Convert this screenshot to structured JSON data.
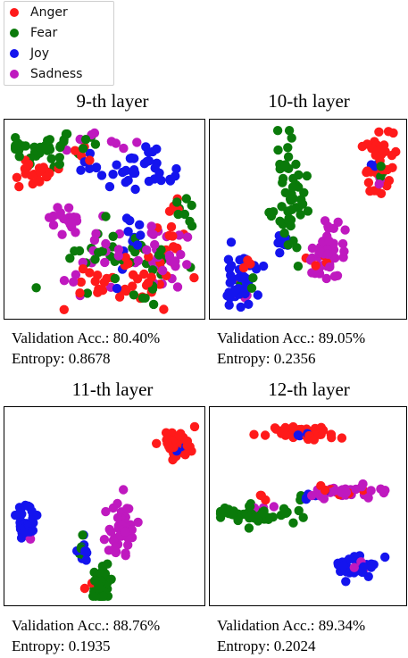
{
  "legend": {
    "items": [
      {
        "label": "Anger",
        "color": "#ff1a1a"
      },
      {
        "label": "Fear",
        "color": "#0a7a0a"
      },
      {
        "label": "Joy",
        "color": "#1414ee"
      },
      {
        "label": "Sadness",
        "color": "#bf19bf"
      }
    ]
  },
  "panels": [
    {
      "title": "9-th layer",
      "accuracy": "Validation Acc.: 80.40%",
      "entropy": "Entropy: 0.8678"
    },
    {
      "title": "10-th layer",
      "accuracy": "Validation Acc.: 89.05%",
      "entropy": "Entropy: 0.2356"
    },
    {
      "title": "11-th layer",
      "accuracy": "Validation Acc.: 88.76%",
      "entropy": "Entropy: 0.1935"
    },
    {
      "title": "12-th layer",
      "accuracy": "Validation Acc.: 89.34%",
      "entropy": "Entropy: 0.2024"
    }
  ],
  "chart_data": [
    {
      "type": "scatter",
      "title": "9-th layer",
      "grid": false,
      "series": [
        {
          "name": "Anger",
          "color": "#ff1a1a",
          "clusters": [
            {
              "cx": 0.12,
              "cy": 0.75,
              "sx": 0.07,
              "sy": 0.04,
              "n": 22
            },
            {
              "cx": 0.6,
              "cy": 0.18,
              "sx": 0.16,
              "sy": 0.07,
              "n": 40
            },
            {
              "cx": 0.86,
              "cy": 0.45,
              "sx": 0.06,
              "sy": 0.12,
              "n": 14
            },
            {
              "cx": 0.4,
              "cy": 0.9,
              "sx": 0.03,
              "sy": 0.03,
              "n": 4
            }
          ]
        },
        {
          "name": "Fear",
          "color": "#0a7a0a",
          "clusters": [
            {
              "cx": 0.22,
              "cy": 0.88,
              "sx": 0.13,
              "sy": 0.04,
              "n": 40
            },
            {
              "cx": 0.6,
              "cy": 0.3,
              "sx": 0.18,
              "sy": 0.08,
              "n": 38
            },
            {
              "cx": 0.88,
              "cy": 0.58,
              "sx": 0.05,
              "sy": 0.06,
              "n": 8
            }
          ]
        },
        {
          "name": "Joy",
          "color": "#1414ee",
          "clusters": [
            {
              "cx": 0.68,
              "cy": 0.74,
              "sx": 0.09,
              "sy": 0.06,
              "n": 32
            },
            {
              "cx": 0.64,
              "cy": 0.42,
              "sx": 0.04,
              "sy": 0.1,
              "n": 12
            },
            {
              "cx": 0.4,
              "cy": 0.78,
              "sx": 0.05,
              "sy": 0.03,
              "n": 6
            }
          ]
        },
        {
          "name": "Sadness",
          "color": "#bf19bf",
          "clusters": [
            {
              "cx": 0.3,
              "cy": 0.5,
              "sx": 0.07,
              "sy": 0.03,
              "n": 18
            },
            {
              "cx": 0.62,
              "cy": 0.3,
              "sx": 0.2,
              "sy": 0.1,
              "n": 42
            },
            {
              "cx": 0.45,
              "cy": 0.93,
              "sx": 0.1,
              "sy": 0.03,
              "n": 8
            },
            {
              "cx": 0.86,
              "cy": 0.25,
              "sx": 0.04,
              "sy": 0.04,
              "n": 5
            }
          ]
        }
      ]
    },
    {
      "type": "scatter",
      "title": "10-th layer",
      "grid": false,
      "series": [
        {
          "name": "Anger",
          "color": "#ff1a1a",
          "clusters": [
            {
              "cx": 0.88,
              "cy": 0.82,
              "sx": 0.04,
              "sy": 0.09,
              "n": 40
            },
            {
              "cx": 0.15,
              "cy": 0.22,
              "sx": 0.03,
              "sy": 0.05,
              "n": 5
            },
            {
              "cx": 0.58,
              "cy": 0.3,
              "sx": 0.04,
              "sy": 0.05,
              "n": 5
            }
          ]
        },
        {
          "name": "Fear",
          "color": "#0a7a0a",
          "clusters": [
            {
              "cx": 0.4,
              "cy": 0.62,
              "sx": 0.04,
              "sy": 0.16,
              "n": 55
            },
            {
              "cx": 0.9,
              "cy": 0.78,
              "sx": 0.02,
              "sy": 0.03,
              "n": 3
            },
            {
              "cx": 0.15,
              "cy": 0.18,
              "sx": 0.02,
              "sy": 0.03,
              "n": 3
            }
          ]
        },
        {
          "name": "Joy",
          "color": "#1414ee",
          "clusters": [
            {
              "cx": 0.13,
              "cy": 0.16,
              "sx": 0.05,
              "sy": 0.07,
              "n": 40
            },
            {
              "cx": 0.35,
              "cy": 0.38,
              "sx": 0.03,
              "sy": 0.04,
              "n": 8
            },
            {
              "cx": 0.88,
              "cy": 0.78,
              "sx": 0.02,
              "sy": 0.03,
              "n": 3
            }
          ]
        },
        {
          "name": "Sadness",
          "color": "#bf19bf",
          "clusters": [
            {
              "cx": 0.6,
              "cy": 0.33,
              "sx": 0.05,
              "sy": 0.08,
              "n": 45
            },
            {
              "cx": 0.14,
              "cy": 0.1,
              "sx": 0.02,
              "sy": 0.02,
              "n": 3
            },
            {
              "cx": 0.88,
              "cy": 0.72,
              "sx": 0.02,
              "sy": 0.02,
              "n": 3
            }
          ]
        }
      ]
    },
    {
      "type": "scatter",
      "title": "11-th layer",
      "grid": false,
      "series": [
        {
          "name": "Anger",
          "color": "#ff1a1a",
          "clusters": [
            {
              "cx": 0.88,
              "cy": 0.84,
              "sx": 0.04,
              "sy": 0.04,
              "n": 45
            },
            {
              "cx": 0.42,
              "cy": 0.08,
              "sx": 0.02,
              "sy": 0.02,
              "n": 2
            }
          ]
        },
        {
          "name": "Fear",
          "color": "#0a7a0a",
          "clusters": [
            {
              "cx": 0.48,
              "cy": 0.08,
              "sx": 0.03,
              "sy": 0.06,
              "n": 40
            },
            {
              "cx": 0.38,
              "cy": 0.26,
              "sx": 0.02,
              "sy": 0.03,
              "n": 6
            }
          ]
        },
        {
          "name": "Joy",
          "color": "#1414ee",
          "clusters": [
            {
              "cx": 0.08,
              "cy": 0.42,
              "sx": 0.03,
              "sy": 0.06,
              "n": 32
            },
            {
              "cx": 0.38,
              "cy": 0.26,
              "sx": 0.02,
              "sy": 0.04,
              "n": 12
            },
            {
              "cx": 0.88,
              "cy": 0.84,
              "sx": 0.02,
              "sy": 0.02,
              "n": 3
            }
          ]
        },
        {
          "name": "Sadness",
          "color": "#bf19bf",
          "clusters": [
            {
              "cx": 0.58,
              "cy": 0.38,
              "sx": 0.04,
              "sy": 0.08,
              "n": 40
            },
            {
              "cx": 0.08,
              "cy": 0.35,
              "sx": 0.02,
              "sy": 0.02,
              "n": 2
            }
          ]
        }
      ]
    },
    {
      "type": "scatter",
      "title": "12-th layer",
      "grid": false,
      "series": [
        {
          "name": "Anger",
          "color": "#ff1a1a",
          "clusters": [
            {
              "cx": 0.47,
              "cy": 0.9,
              "sx": 0.1,
              "sy": 0.02,
              "n": 40
            },
            {
              "cx": 0.65,
              "cy": 0.58,
              "sx": 0.06,
              "sy": 0.02,
              "n": 6
            },
            {
              "cx": 0.24,
              "cy": 0.56,
              "sx": 0.02,
              "sy": 0.02,
              "n": 3
            }
          ]
        },
        {
          "name": "Fear",
          "color": "#0a7a0a",
          "clusters": [
            {
              "cx": 0.2,
              "cy": 0.46,
              "sx": 0.1,
              "sy": 0.03,
              "n": 48
            },
            {
              "cx": 0.48,
              "cy": 0.55,
              "sx": 0.02,
              "sy": 0.02,
              "n": 4
            }
          ]
        },
        {
          "name": "Joy",
          "color": "#1414ee",
          "clusters": [
            {
              "cx": 0.74,
              "cy": 0.18,
              "sx": 0.07,
              "sy": 0.03,
              "n": 36
            },
            {
              "cx": 0.5,
              "cy": 0.55,
              "sx": 0.03,
              "sy": 0.02,
              "n": 5
            },
            {
              "cx": 0.42,
              "cy": 0.9,
              "sx": 0.04,
              "sy": 0.01,
              "n": 3
            }
          ]
        },
        {
          "name": "Sadness",
          "color": "#bf19bf",
          "clusters": [
            {
              "cx": 0.72,
              "cy": 0.58,
              "sx": 0.1,
              "sy": 0.02,
              "n": 35
            },
            {
              "cx": 0.78,
              "cy": 0.2,
              "sx": 0.03,
              "sy": 0.02,
              "n": 3
            },
            {
              "cx": 0.26,
              "cy": 0.48,
              "sx": 0.03,
              "sy": 0.02,
              "n": 3
            }
          ]
        }
      ]
    }
  ]
}
